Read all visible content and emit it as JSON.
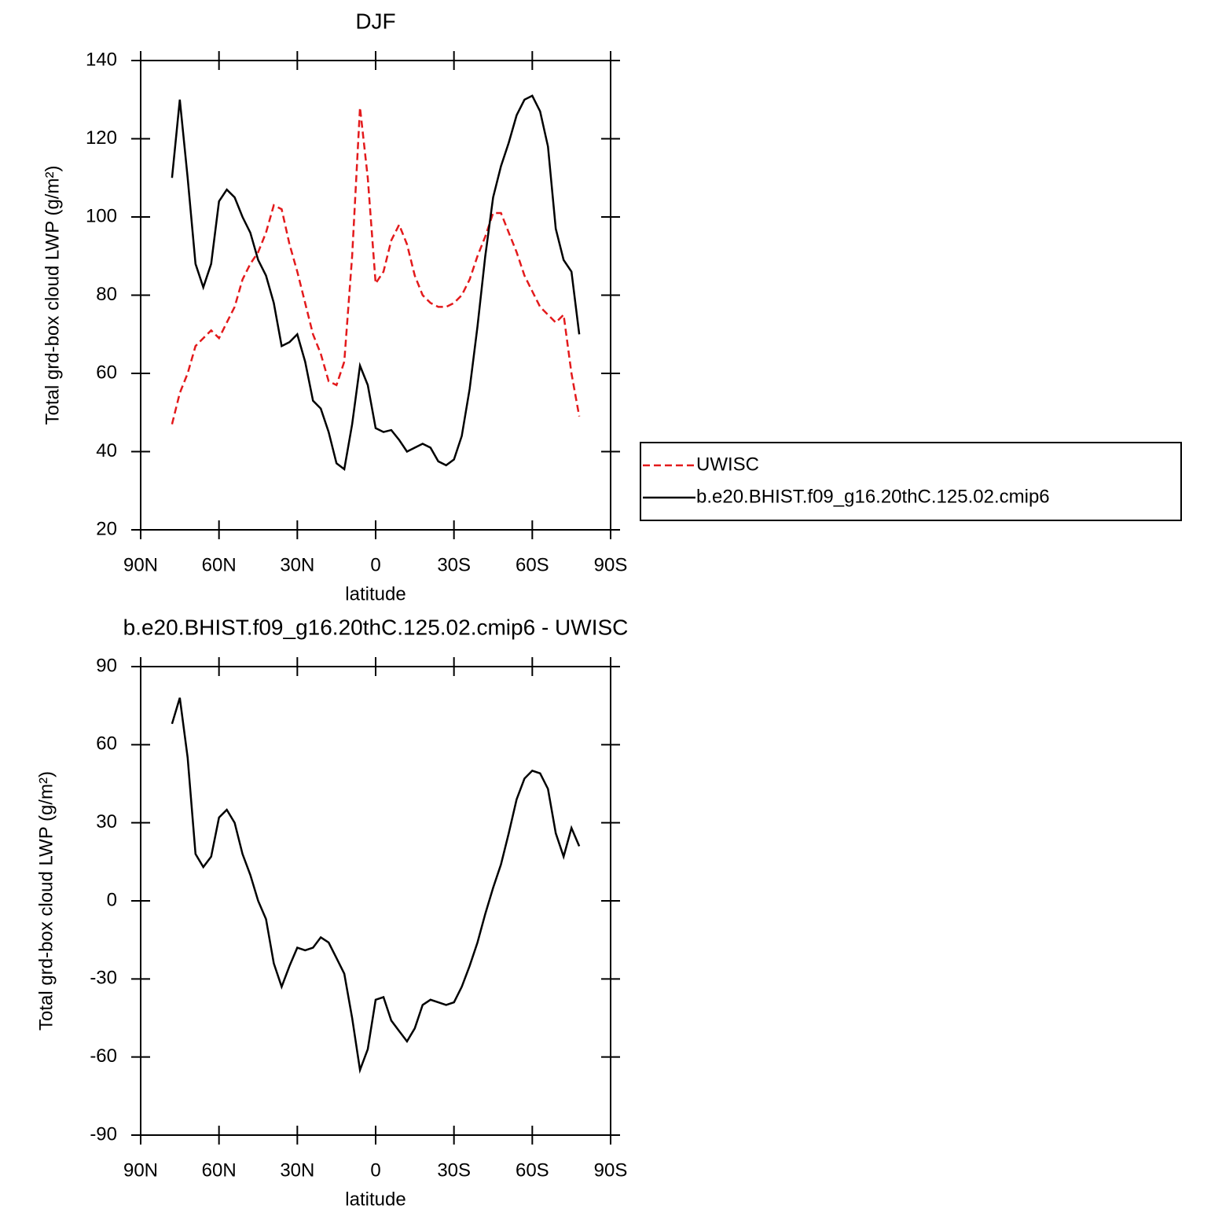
{
  "chart_data": [
    {
      "type": "line",
      "title": "DJF",
      "xlabel": "latitude",
      "ylabel": "Total grd-box cloud LWP (g/m²)",
      "x": [
        78,
        75,
        72,
        69,
        66,
        63,
        60,
        57,
        54,
        51,
        48,
        45,
        42,
        39,
        36,
        33,
        30,
        27,
        24,
        21,
        18,
        15,
        12,
        9,
        6,
        3,
        0,
        -3,
        -6,
        -9,
        -12,
        -15,
        -18,
        -21,
        -24,
        -27,
        -30,
        -33,
        -36,
        -39,
        -42,
        -45,
        -48,
        -51,
        -54,
        -57,
        -60,
        -63,
        -66,
        -69,
        -72,
        -75,
        -78
      ],
      "series": [
        {
          "name": "UWISC",
          "color": "#e31a1c",
          "style": "dashed",
          "values": [
            47,
            55,
            60,
            67,
            69,
            71,
            69,
            73,
            77,
            84,
            88,
            91,
            96,
            103,
            102,
            93,
            86,
            78,
            70,
            65,
            58,
            57,
            63,
            90,
            128,
            110,
            83,
            86,
            94,
            98,
            93,
            85,
            80,
            78,
            77,
            77,
            78,
            80,
            84,
            90,
            95,
            101,
            101,
            96,
            91,
            85,
            81,
            77,
            75,
            73,
            75,
            60,
            49
          ]
        },
        {
          "name": "b.e20.BHIST.f09_g16.20thC.125.02.cmip6",
          "color": "#000000",
          "style": "solid",
          "values": [
            110,
            130,
            110,
            88,
            82,
            88,
            104,
            107,
            105,
            100,
            96,
            89,
            85,
            78,
            67,
            68,
            70,
            63,
            53,
            51,
            45,
            37,
            35.5,
            47,
            62,
            57,
            46,
            45,
            45.5,
            43,
            40,
            41,
            42,
            41,
            37.5,
            36.5,
            38,
            44,
            56,
            72,
            90,
            105,
            113,
            119,
            126,
            130,
            131,
            127,
            118,
            97,
            89,
            86,
            70
          ]
        }
      ],
      "xlim": [
        90,
        -90
      ],
      "xticks": [
        {
          "value": 90,
          "label": "90N"
        },
        {
          "value": 60,
          "label": "60N"
        },
        {
          "value": 30,
          "label": "30N"
        },
        0,
        {
          "value": -30,
          "label": "30S"
        },
        {
          "value": -60,
          "label": "60S"
        },
        {
          "value": -90,
          "label": "90S"
        }
      ],
      "ylim": [
        20,
        140
      ],
      "yticks": [
        20,
        40,
        60,
        80,
        100,
        120,
        140
      ],
      "legend": "right"
    },
    {
      "type": "line",
      "title": "b.e20.BHIST.f09_g16.20thC.125.02.cmip6 - UWISC",
      "xlabel": "latitude",
      "ylabel": "Total grd-box cloud LWP (g/m²)",
      "x": [
        78,
        75,
        72,
        69,
        66,
        63,
        60,
        57,
        54,
        51,
        48,
        45,
        42,
        39,
        36,
        33,
        30,
        27,
        24,
        21,
        18,
        15,
        12,
        9,
        6,
        3,
        0,
        -3,
        -6,
        -9,
        -12,
        -15,
        -18,
        -21,
        -24,
        -27,
        -30,
        -33,
        -36,
        -39,
        -42,
        -45,
        -48,
        -51,
        -54,
        -57,
        -60,
        -63,
        -66,
        -69,
        -72,
        -75,
        -78
      ],
      "series": [
        {
          "color": "#000000",
          "style": "solid",
          "values": [
            68,
            78,
            55,
            18,
            13,
            17,
            32,
            35,
            30,
            18,
            10,
            0,
            -7,
            -24,
            -33,
            -25,
            -18,
            -19,
            -18,
            -14,
            -16,
            -22,
            -28,
            -45,
            -65,
            -57,
            -38,
            -37,
            -46,
            -50,
            -54,
            -49,
            -40,
            -38,
            -39,
            -40,
            -39,
            -33,
            -25,
            -16,
            -5,
            5,
            14,
            26,
            39,
            47,
            50,
            49,
            43,
            26,
            17,
            28,
            21
          ]
        }
      ],
      "xlim": [
        90,
        -90
      ],
      "xticks": [
        {
          "value": 90,
          "label": "90N"
        },
        {
          "value": 60,
          "label": "60N"
        },
        {
          "value": 30,
          "label": "30N"
        },
        0,
        {
          "value": -30,
          "label": "30S"
        },
        {
          "value": -60,
          "label": "60S"
        },
        {
          "value": -90,
          "label": "90S"
        }
      ],
      "ylim": [
        -90,
        90
      ],
      "yticks": [
        -90,
        -60,
        -30,
        0,
        30,
        60,
        90
      ]
    }
  ]
}
